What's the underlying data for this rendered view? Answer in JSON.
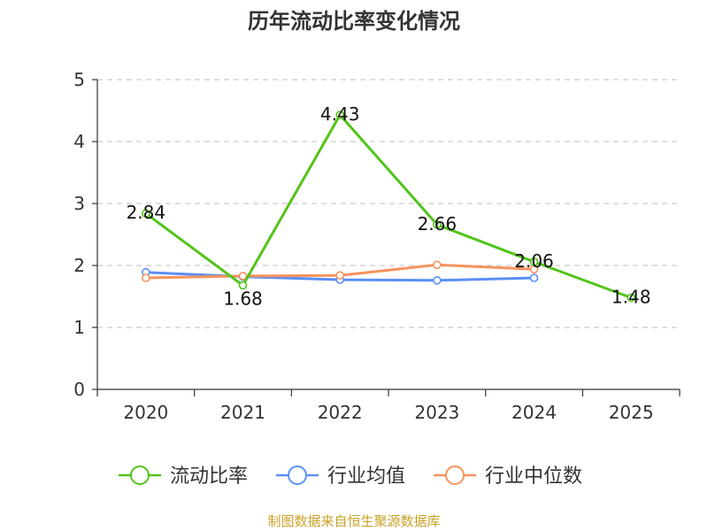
{
  "chart_data": {
    "type": "line",
    "title": "历年流动比率变化情况",
    "categories": [
      "2020",
      "2021",
      "2022",
      "2023",
      "2024",
      "2025"
    ],
    "ylim": [
      0,
      5
    ],
    "yticks": [
      0,
      1,
      2,
      3,
      4,
      5
    ],
    "grid": true,
    "legend_position": "bottom",
    "series": [
      {
        "name": "流动比率",
        "color": "#52c41a",
        "values": [
          2.84,
          1.68,
          4.43,
          2.66,
          2.06,
          1.48
        ],
        "labels": [
          "2.84",
          "1.68",
          "4.43",
          "2.66",
          "2.06",
          "1.48"
        ],
        "show_labels": true
      },
      {
        "name": "行业均值",
        "color": "#5b8ff9",
        "values": [
          1.89,
          1.82,
          1.77,
          1.76,
          1.8,
          null
        ],
        "show_labels": false
      },
      {
        "name": "行业中位数",
        "color": "#f6935c",
        "values": [
          1.8,
          1.83,
          1.84,
          2.01,
          1.94,
          null
        ],
        "show_labels": false
      }
    ]
  },
  "source": "制图数据来自恒生聚源数据库"
}
